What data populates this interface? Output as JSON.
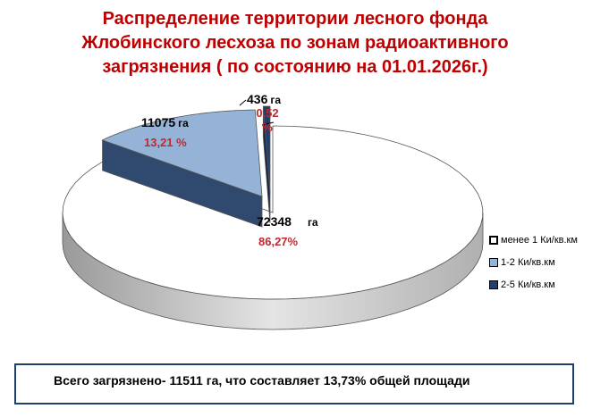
{
  "title_lines": [
    "Распределение территории лесного фонда",
    "Жлобинского лесхоза по зонам радиоактивного",
    "загрязнения ( по состоянию на 01.01.2026г.)"
  ],
  "chart_data": {
    "type": "pie",
    "title": "Распределение территории лесного фонда Жлобинского лесхоза по зонам радиоактивного загрязнения ( по состоянию на 01.01.2026г.)",
    "unit": "га",
    "slices": [
      {
        "name": "менее 1 Ки/кв.км",
        "value": 72348,
        "value_label": "72348",
        "percent_label": "86,27%",
        "color": "#ffffff"
      },
      {
        "name": "1-2 Ки/кв.км",
        "value": 11075,
        "value_label": "11075",
        "percent_label": "13,21 %",
        "color": "#95b3d7"
      },
      {
        "name": "2-5 Ки/кв.км",
        "value": 436,
        "value_label": "436",
        "percent_label": "0,52 %",
        "color": "#1f3f6e"
      }
    ],
    "legend_position": "right"
  },
  "summary": "Всего загрязнено- 11511 га, что составляет 13,73% общей площади"
}
